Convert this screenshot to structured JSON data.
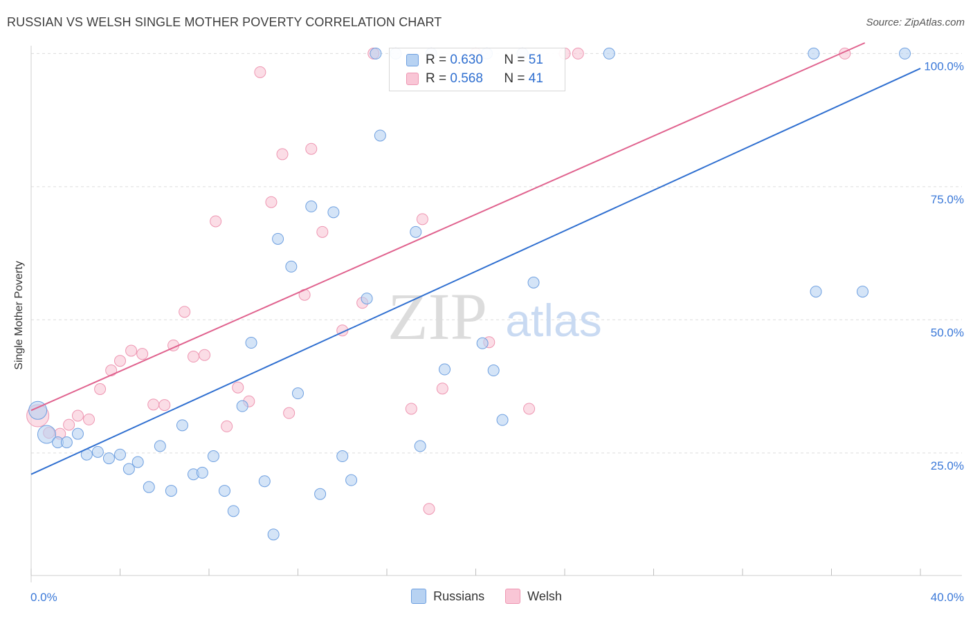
{
  "header": {
    "title": "RUSSIAN VS WELSH SINGLE MOTHER POVERTY CORRELATION CHART",
    "source": "Source: ZipAtlas.com"
  },
  "watermark": {
    "zip": "ZIP",
    "atlas": "atlas"
  },
  "legend": {
    "russians": {
      "r_label": "R =",
      "r_value": "0.630",
      "n_label": "N =",
      "n_value": "51"
    },
    "welsh": {
      "r_label": "R =",
      "r_value": "0.568",
      "n_label": "N =",
      "n_value": "41"
    }
  },
  "colors": {
    "russians_fill": "#b7d2f2",
    "russians_stroke": "#6d9fe0",
    "russians_line": "#2f6fd0",
    "welsh_fill": "#f9c6d6",
    "welsh_stroke": "#ee95b1",
    "welsh_line": "#e0628e",
    "axis_label": "#3a78d8"
  },
  "chart_data": {
    "type": "scatter",
    "title": "RUSSIAN VS WELSH SINGLE MOTHER POVERTY CORRELATION CHART",
    "xlabel": "",
    "ylabel": "Single Mother Poverty",
    "xlim": [
      0,
      40
    ],
    "ylim": [
      2,
      102
    ],
    "x_tick_labels": [
      "0.0%",
      "40.0%"
    ],
    "y_ticks": [
      25,
      50,
      75,
      100
    ],
    "y_tick_labels": [
      "25.0%",
      "50.0%",
      "75.0%",
      "100.0%"
    ],
    "grid": "horizontal dashed",
    "legend_position": "top-center",
    "series": [
      {
        "name": "Russians",
        "r": 0.63,
        "n": 51,
        "trend": {
          "x": [
            0,
            40
          ],
          "y": [
            21.0,
            97.2
          ]
        },
        "points": [
          [
            0.3,
            33.0
          ],
          [
            0.7,
            28.5
          ],
          [
            1.2,
            27.0
          ],
          [
            2.1,
            28.6
          ],
          [
            1.6,
            27.0
          ],
          [
            2.5,
            24.7
          ],
          [
            3.0,
            25.2
          ],
          [
            3.5,
            24.0
          ],
          [
            4.0,
            24.7
          ],
          [
            4.4,
            22.0
          ],
          [
            4.8,
            23.3
          ],
          [
            5.3,
            18.6
          ],
          [
            5.8,
            26.3
          ],
          [
            6.3,
            17.9
          ],
          [
            6.8,
            30.2
          ],
          [
            7.3,
            21.0
          ],
          [
            7.7,
            21.3
          ],
          [
            8.2,
            24.4
          ],
          [
            8.7,
            17.9
          ],
          [
            9.1,
            14.1
          ],
          [
            9.5,
            33.8
          ],
          [
            9.9,
            45.7
          ],
          [
            10.5,
            19.7
          ],
          [
            10.9,
            9.7
          ],
          [
            11.1,
            65.2
          ],
          [
            11.7,
            60.0
          ],
          [
            12.0,
            36.2
          ],
          [
            12.6,
            71.3
          ],
          [
            13.0,
            17.3
          ],
          [
            13.6,
            70.2
          ],
          [
            14.0,
            24.4
          ],
          [
            14.4,
            19.9
          ],
          [
            15.1,
            54.0
          ],
          [
            15.7,
            84.6
          ],
          [
            17.3,
            66.5
          ],
          [
            17.5,
            26.3
          ],
          [
            18.6,
            40.7
          ],
          [
            20.3,
            45.6
          ],
          [
            20.8,
            40.5
          ],
          [
            21.2,
            31.2
          ],
          [
            22.6,
            57.0
          ],
          [
            15.5,
            100
          ],
          [
            16.4,
            100
          ],
          [
            18.0,
            100
          ],
          [
            20.5,
            100
          ],
          [
            22.1,
            100
          ],
          [
            26.0,
            100
          ],
          [
            35.2,
            100
          ],
          [
            35.3,
            55.3
          ],
          [
            37.4,
            55.3
          ],
          [
            39.3,
            100
          ]
        ]
      },
      {
        "name": "Welsh",
        "r": 0.568,
        "n": 41,
        "trend": {
          "x": [
            0,
            37.5
          ],
          "y": [
            33.0,
            102.0
          ]
        },
        "points": [
          [
            0.3,
            32.0
          ],
          [
            0.8,
            28.8
          ],
          [
            1.3,
            28.6
          ],
          [
            1.7,
            30.3
          ],
          [
            2.1,
            32.0
          ],
          [
            2.6,
            31.3
          ],
          [
            3.1,
            37.0
          ],
          [
            3.6,
            40.5
          ],
          [
            4.0,
            42.3
          ],
          [
            4.5,
            44.2
          ],
          [
            5.0,
            43.6
          ],
          [
            5.5,
            34.1
          ],
          [
            6.0,
            34.0
          ],
          [
            6.4,
            45.2
          ],
          [
            6.9,
            51.5
          ],
          [
            7.3,
            43.1
          ],
          [
            7.8,
            43.4
          ],
          [
            8.3,
            68.5
          ],
          [
            8.8,
            30.0
          ],
          [
            9.3,
            37.3
          ],
          [
            9.8,
            34.7
          ],
          [
            10.3,
            96.5
          ],
          [
            10.8,
            72.1
          ],
          [
            11.3,
            81.1
          ],
          [
            11.6,
            32.5
          ],
          [
            12.3,
            54.7
          ],
          [
            12.6,
            82.1
          ],
          [
            13.1,
            66.5
          ],
          [
            14.0,
            48.0
          ],
          [
            14.9,
            53.2
          ],
          [
            15.4,
            100
          ],
          [
            17.1,
            33.3
          ],
          [
            17.6,
            68.9
          ],
          [
            17.9,
            14.5
          ],
          [
            18.5,
            37.1
          ],
          [
            20.6,
            45.8
          ],
          [
            22.4,
            33.3
          ],
          [
            24.6,
            100
          ],
          [
            20.0,
            100
          ],
          [
            24.0,
            100
          ],
          [
            36.6,
            100
          ]
        ]
      }
    ]
  },
  "axes": {
    "y_axis_label": "Single Mother Poverty",
    "x_min_label": "0.0%",
    "x_max_label": "40.0%"
  },
  "bottom_legend": {
    "russians": "Russians",
    "welsh": "Welsh"
  }
}
